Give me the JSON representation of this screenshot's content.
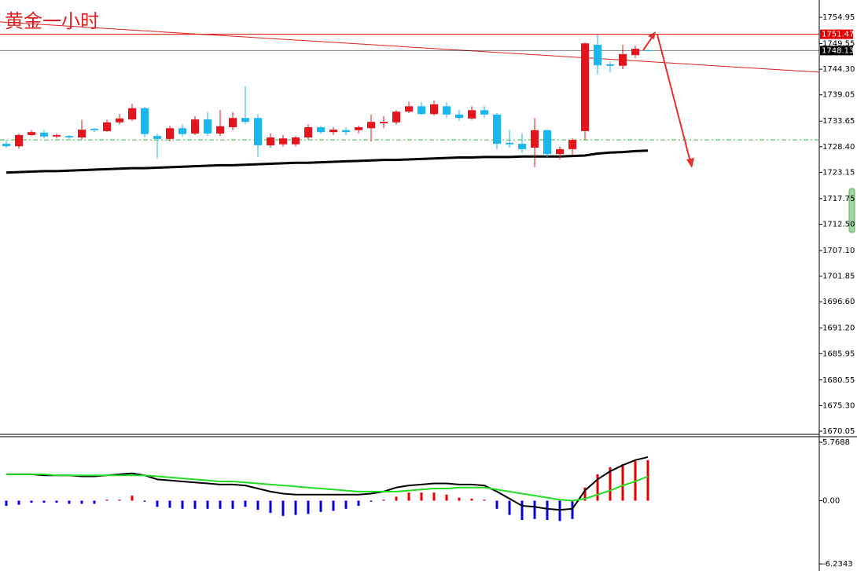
{
  "chart_data": [
    {
      "type": "candlestick",
      "title": "黄金一小时",
      "open": [
        1729.0,
        1728.5,
        1730.8,
        1731.3,
        1730.5,
        1730.6,
        1730.3,
        1732.1,
        1731.6,
        1733.4,
        1734.0,
        1736.3,
        1730.6,
        1730.0,
        1732.2,
        1731.1,
        1734.0,
        1731.1,
        1732.4,
        1734.3,
        1734.3,
        1728.7,
        1728.9,
        1728.9,
        1730.3,
        1732.4,
        1731.4,
        1731.8,
        1731.8,
        1732.2,
        1733.2,
        1733.4,
        1735.6,
        1736.7,
        1735.1,
        1736.7,
        1735.0,
        1734.2,
        1735.9,
        1735.0,
        1729.2,
        1729.0,
        1728.2,
        1731.8,
        1726.9,
        1727.9,
        1731.6,
        1749.3,
        1745.3,
        1745.0,
        1747.2,
        1748.2
      ],
      "high": [
        1729.8,
        1731.1,
        1731.8,
        1731.8,
        1731.1,
        1730.8,
        1733.9,
        1732.2,
        1733.9,
        1735.1,
        1737.2,
        1736.6,
        1731.1,
        1732.7,
        1733.0,
        1734.7,
        1735.5,
        1735.9,
        1735.5,
        1740.8,
        1735.1,
        1731.1,
        1730.8,
        1730.6,
        1733.0,
        1732.7,
        1732.4,
        1732.4,
        1732.7,
        1735.0,
        1734.7,
        1735.9,
        1737.6,
        1737.6,
        1737.9,
        1737.6,
        1735.9,
        1736.7,
        1736.7,
        1735.3,
        1731.9,
        1731.1,
        1734.3,
        1731.9,
        1728.5,
        1730.1,
        1749.8,
        1751.4,
        1745.9,
        1749.3,
        1749.2,
        1748.3
      ],
      "low": [
        1728.2,
        1728.0,
        1730.6,
        1730.1,
        1730.1,
        1730.0,
        1729.8,
        1731.4,
        1731.4,
        1733.0,
        1733.7,
        1730.3,
        1726.0,
        1729.5,
        1730.5,
        1730.8,
        1730.6,
        1730.6,
        1731.8,
        1733.0,
        1726.3,
        1728.2,
        1728.4,
        1728.5,
        1729.8,
        1731.1,
        1730.8,
        1730.8,
        1731.1,
        1729.5,
        1732.2,
        1733.0,
        1735.3,
        1735.0,
        1734.8,
        1734.3,
        1733.7,
        1733.9,
        1734.3,
        1727.9,
        1728.2,
        1727.2,
        1724.2,
        1726.3,
        1725.8,
        1726.6,
        1729.8,
        1743.2,
        1743.7,
        1744.3,
        1746.6,
        1748.1
      ],
      "close": [
        1728.5,
        1730.8,
        1731.4,
        1730.5,
        1730.8,
        1730.3,
        1731.9,
        1731.8,
        1733.4,
        1734.2,
        1736.3,
        1731.0,
        1730.0,
        1732.2,
        1731.0,
        1734.0,
        1731.1,
        1732.6,
        1734.3,
        1733.5,
        1728.7,
        1730.3,
        1730.1,
        1730.3,
        1732.4,
        1731.4,
        1731.9,
        1731.4,
        1732.4,
        1733.5,
        1733.5,
        1735.6,
        1736.7,
        1735.1,
        1737.1,
        1735.0,
        1734.3,
        1735.9,
        1735.0,
        1729.0,
        1728.9,
        1727.9,
        1731.8,
        1726.9,
        1727.9,
        1729.8,
        1749.6,
        1745.1,
        1745.0,
        1747.4,
        1748.5,
        1748.1
      ],
      "up_color": "#e8141c",
      "down_color": "#1cb6ee",
      "moving_average": {
        "color": "#000000",
        "values": [
          1723.1,
          1723.2,
          1723.3,
          1723.4,
          1723.4,
          1723.5,
          1723.6,
          1723.7,
          1723.8,
          1723.9,
          1724.0,
          1724.0,
          1724.1,
          1724.2,
          1724.3,
          1724.4,
          1724.5,
          1724.6,
          1724.6,
          1724.7,
          1724.8,
          1724.9,
          1725.0,
          1725.1,
          1725.1,
          1725.2,
          1725.3,
          1725.4,
          1725.5,
          1725.6,
          1725.7,
          1725.7,
          1725.8,
          1725.9,
          1726.0,
          1726.1,
          1726.2,
          1726.2,
          1726.3,
          1726.3,
          1726.3,
          1726.4,
          1726.4,
          1726.4,
          1726.4,
          1726.5,
          1726.6,
          1727.0,
          1727.2,
          1727.3,
          1727.5,
          1727.6
        ]
      },
      "trendline": {
        "color": "#e02020",
        "values": [
          1754.0,
          1743.7
        ]
      },
      "dashed_level": {
        "value": 1729.8,
        "color": "#33bb33"
      },
      "levels": [
        {
          "value": 1751.47,
          "color": "#e00000"
        },
        {
          "value": 1748.13,
          "color": "#000000"
        }
      ],
      "ylim": [
        1669.4,
        1758.5
      ],
      "yticks": [
        {
          "value": 1754.95,
          "label": "1754.95"
        },
        {
          "value": 1749.55,
          "label": "1749.55"
        },
        {
          "value": 1744.3,
          "label": "1744.30"
        },
        {
          "value": 1739.05,
          "label": "1739.05"
        },
        {
          "value": 1733.65,
          "label": "1733.65"
        },
        {
          "value": 1728.4,
          "label": "1728.40"
        },
        {
          "value": 1723.15,
          "label": "1723.15"
        },
        {
          "value": 1717.75,
          "label": "1717.75"
        },
        {
          "value": 1712.5,
          "label": "1712.50"
        },
        {
          "value": 1707.1,
          "label": "1707.10"
        },
        {
          "value": 1701.85,
          "label": "1701.85"
        },
        {
          "value": 1696.6,
          "label": "1696.60"
        },
        {
          "value": 1691.2,
          "label": "1691.20"
        },
        {
          "value": 1685.95,
          "label": "1685.95"
        },
        {
          "value": 1680.55,
          "label": "1680.55"
        },
        {
          "value": 1675.3,
          "label": "1675.30"
        },
        {
          "value": 1670.05,
          "label": "1670.05"
        }
      ]
    },
    {
      "type": "macd",
      "histogram": {
        "up_color": "#e00000",
        "down_color": "#0000e0",
        "values": [
          -0.5,
          -0.4,
          -0.2,
          -0.2,
          -0.2,
          -0.3,
          -0.3,
          -0.3,
          0.1,
          0.1,
          0.5,
          -0.1,
          -0.6,
          -0.7,
          -0.8,
          -0.8,
          -0.8,
          -0.8,
          -0.8,
          -0.6,
          -0.9,
          -1.2,
          -1.5,
          -1.4,
          -1.3,
          -1.1,
          -1.0,
          -0.8,
          -0.5,
          -0.1,
          0.1,
          0.4,
          0.8,
          0.8,
          0.8,
          0.6,
          0.3,
          0.2,
          0.1,
          -0.8,
          -1.4,
          -1.9,
          -1.8,
          -1.9,
          -2.0,
          -1.8,
          1.3,
          2.6,
          3.3,
          3.6,
          3.9,
          4.0
        ]
      },
      "series": [
        {
          "color": "#000000",
          "values": [
            2.6,
            2.6,
            2.6,
            2.5,
            2.5,
            2.5,
            2.4,
            2.4,
            2.5,
            2.6,
            2.7,
            2.5,
            2.1,
            2.0,
            1.9,
            1.8,
            1.7,
            1.6,
            1.6,
            1.5,
            1.2,
            0.9,
            0.7,
            0.6,
            0.6,
            0.6,
            0.6,
            0.6,
            0.6,
            0.7,
            0.9,
            1.3,
            1.5,
            1.6,
            1.7,
            1.7,
            1.6,
            1.6,
            1.5,
            0.9,
            0.2,
            -0.5,
            -0.6,
            -0.8,
            -0.9,
            -0.8,
            1.0,
            2.1,
            2.9,
            3.5,
            4.0,
            4.3
          ]
        },
        {
          "color": "#22dd22",
          "values": [
            2.6,
            2.6,
            2.6,
            2.6,
            2.5,
            2.5,
            2.5,
            2.5,
            2.5,
            2.5,
            2.5,
            2.5,
            2.4,
            2.3,
            2.2,
            2.1,
            2.0,
            1.9,
            1.9,
            1.8,
            1.7,
            1.6,
            1.5,
            1.4,
            1.3,
            1.2,
            1.1,
            1.0,
            0.9,
            0.9,
            0.9,
            0.9,
            1.0,
            1.1,
            1.2,
            1.2,
            1.3,
            1.3,
            1.3,
            1.1,
            0.9,
            0.7,
            0.5,
            0.3,
            0.1,
            0.0,
            0.2,
            0.6,
            1.0,
            1.5,
            1.9,
            2.4
          ]
        }
      ],
      "ylim": [
        -6.93,
        6.31
      ],
      "yticks": [
        {
          "value": 5.7688,
          "label": "5.7688"
        },
        {
          "value": 0,
          "label": "0.00"
        },
        {
          "value": -6.2343,
          "label": "-6.2343"
        }
      ]
    }
  ]
}
